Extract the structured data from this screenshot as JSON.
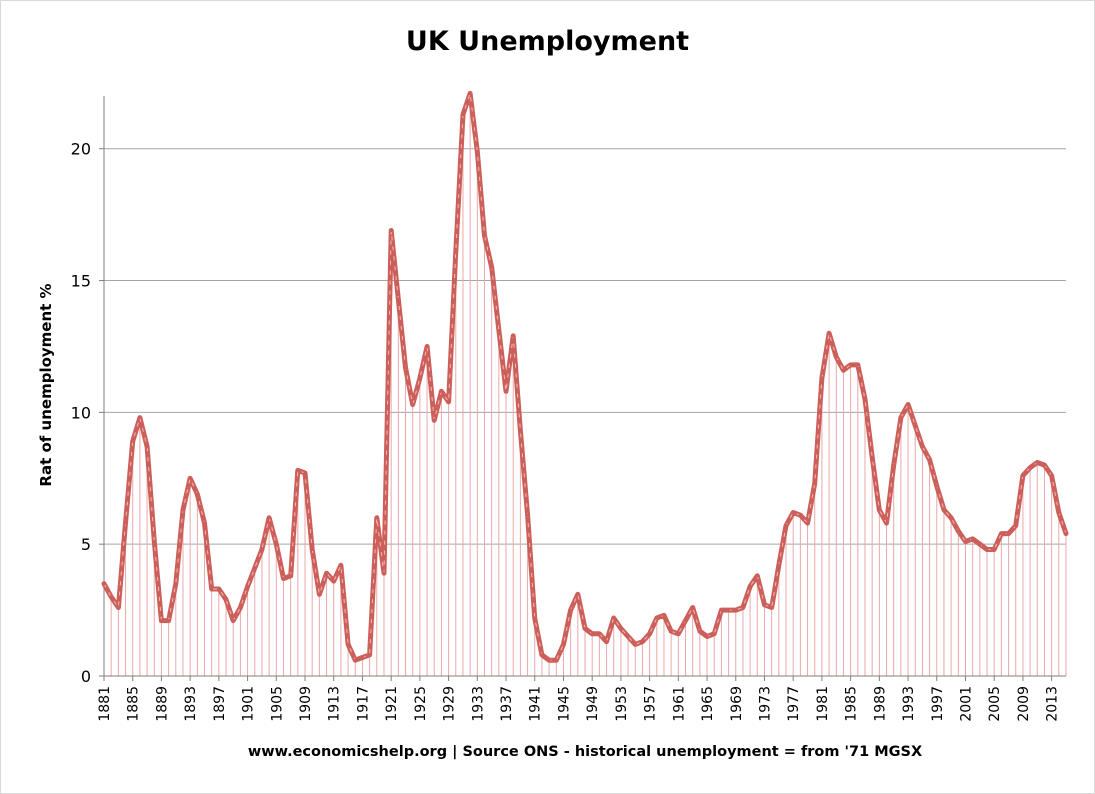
{
  "chart_data": {
    "type": "line",
    "title": "UK Unemployment",
    "xlabel": "www.economicshelp.org | Source ONS - historical unemployment = from '71 MGSX",
    "ylabel": "Rat of unemployment %",
    "ylim": [
      0,
      22
    ],
    "yticks": [
      "0",
      "5",
      "10",
      "15",
      "20"
    ],
    "xtick_labels": [
      "1881",
      "1885",
      "1889",
      "1893",
      "1897",
      "1901",
      "1905",
      "1909",
      "1913",
      "1917",
      "1921",
      "1925",
      "1929",
      "1933",
      "1937",
      "1941",
      "1945",
      "1949",
      "1953",
      "1957",
      "1961",
      "1965",
      "1969",
      "1973",
      "1977",
      "1981",
      "1985",
      "1989",
      "1993",
      "1997",
      "2001",
      "2005",
      "2009",
      "2013"
    ],
    "grid": "horizontal",
    "drop_lines": true,
    "colors": {
      "line": "#cd5f5a",
      "drop_line": "#e9a9a6",
      "grid": "#a6a6a6"
    },
    "series": [
      {
        "x": [
          1881,
          1882,
          1883,
          1884,
          1885,
          1886,
          1887,
          1888,
          1889,
          1890,
          1891,
          1892,
          1893,
          1894,
          1895,
          1896,
          1897,
          1898,
          1899,
          1900,
          1901,
          1902,
          1903,
          1904,
          1905,
          1906,
          1907,
          1908,
          1909,
          1910,
          1911,
          1912,
          1913,
          1914,
          1915,
          1916,
          1917,
          1918,
          1919,
          1920,
          1921,
          1922,
          1923,
          1924,
          1925,
          1926,
          1927,
          1928,
          1929,
          1930,
          1931,
          1932,
          1933,
          1934,
          1935,
          1936,
          1937,
          1938,
          1939,
          1940,
          1941,
          1942,
          1943,
          1944,
          1945,
          1946,
          1947,
          1948,
          1949,
          1950,
          1951,
          1952,
          1953,
          1954,
          1955,
          1956,
          1957,
          1958,
          1959,
          1960,
          1961,
          1962,
          1963,
          1964,
          1965,
          1966,
          1967,
          1968,
          1969,
          1970,
          1971,
          1972,
          1973,
          1974,
          1975,
          1976,
          1977,
          1978,
          1979,
          1980,
          1981,
          1982,
          1983,
          1984,
          1985,
          1986,
          1987,
          1988,
          1989,
          1990,
          1991,
          1992,
          1993,
          1994,
          1995,
          1996,
          1997,
          1998,
          1999,
          2000,
          2001,
          2002,
          2003,
          2004,
          2005,
          2006,
          2007,
          2008,
          2009,
          2010,
          2011,
          2012,
          2013,
          2014,
          2015
        ],
        "values": [
          3.5,
          3.0,
          2.6,
          5.8,
          8.9,
          9.8,
          8.7,
          5.1,
          2.1,
          2.1,
          3.5,
          6.3,
          7.5,
          6.9,
          5.8,
          3.3,
          3.3,
          2.9,
          2.1,
          2.6,
          3.4,
          4.1,
          4.8,
          6.0,
          5.0,
          3.7,
          3.8,
          7.8,
          7.7,
          4.8,
          3.1,
          3.9,
          3.6,
          4.2,
          1.2,
          0.6,
          0.7,
          0.8,
          6.0,
          3.9,
          16.9,
          14.3,
          11.7,
          10.3,
          11.3,
          12.5,
          9.7,
          10.8,
          10.4,
          16.1,
          21.3,
          22.1,
          19.9,
          16.7,
          15.5,
          13.1,
          10.8,
          12.9,
          9.3,
          6.1,
          2.2,
          0.8,
          0.6,
          0.6,
          1.2,
          2.5,
          3.1,
          1.8,
          1.6,
          1.6,
          1.3,
          2.2,
          1.8,
          1.5,
          1.2,
          1.3,
          1.6,
          2.2,
          2.3,
          1.7,
          1.6,
          2.1,
          2.6,
          1.7,
          1.5,
          1.6,
          2.5,
          2.5,
          2.5,
          2.6,
          3.4,
          3.8,
          2.7,
          2.6,
          4.2,
          5.7,
          6.2,
          6.1,
          5.8,
          7.3,
          11.3,
          13.0,
          12.1,
          11.6,
          11.8,
          11.8,
          10.5,
          8.3,
          6.3,
          5.8,
          8.0,
          9.8,
          10.3,
          9.5,
          8.7,
          8.2,
          7.2,
          6.3,
          6.0,
          5.5,
          5.1,
          5.2,
          5.0,
          4.8,
          4.8,
          5.4,
          5.4,
          5.7,
          7.6,
          7.9,
          8.1,
          8.0,
          7.6,
          6.2,
          5.4
        ]
      }
    ]
  }
}
